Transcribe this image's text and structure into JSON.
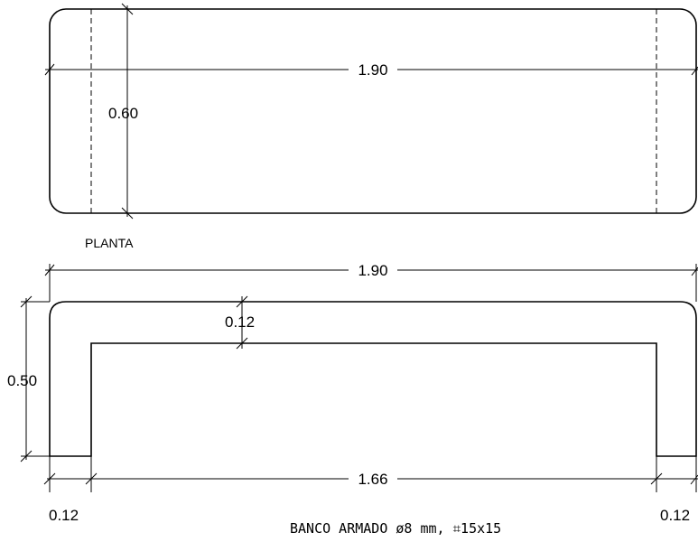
{
  "plan": {
    "title": "PLANTA",
    "length_label": "1.90",
    "width_label": "0.60"
  },
  "elevation": {
    "length_label": "1.90",
    "height_label": "0.50",
    "thickness_label": "0.12",
    "inner_length_label": "1.66",
    "leg_left_label": "0.12",
    "leg_right_label": "0.12"
  },
  "caption": "BANCO ARMADO ø8 mm, ⌗15x15",
  "colors": {
    "line": "#000000",
    "background": "#ffffff"
  }
}
